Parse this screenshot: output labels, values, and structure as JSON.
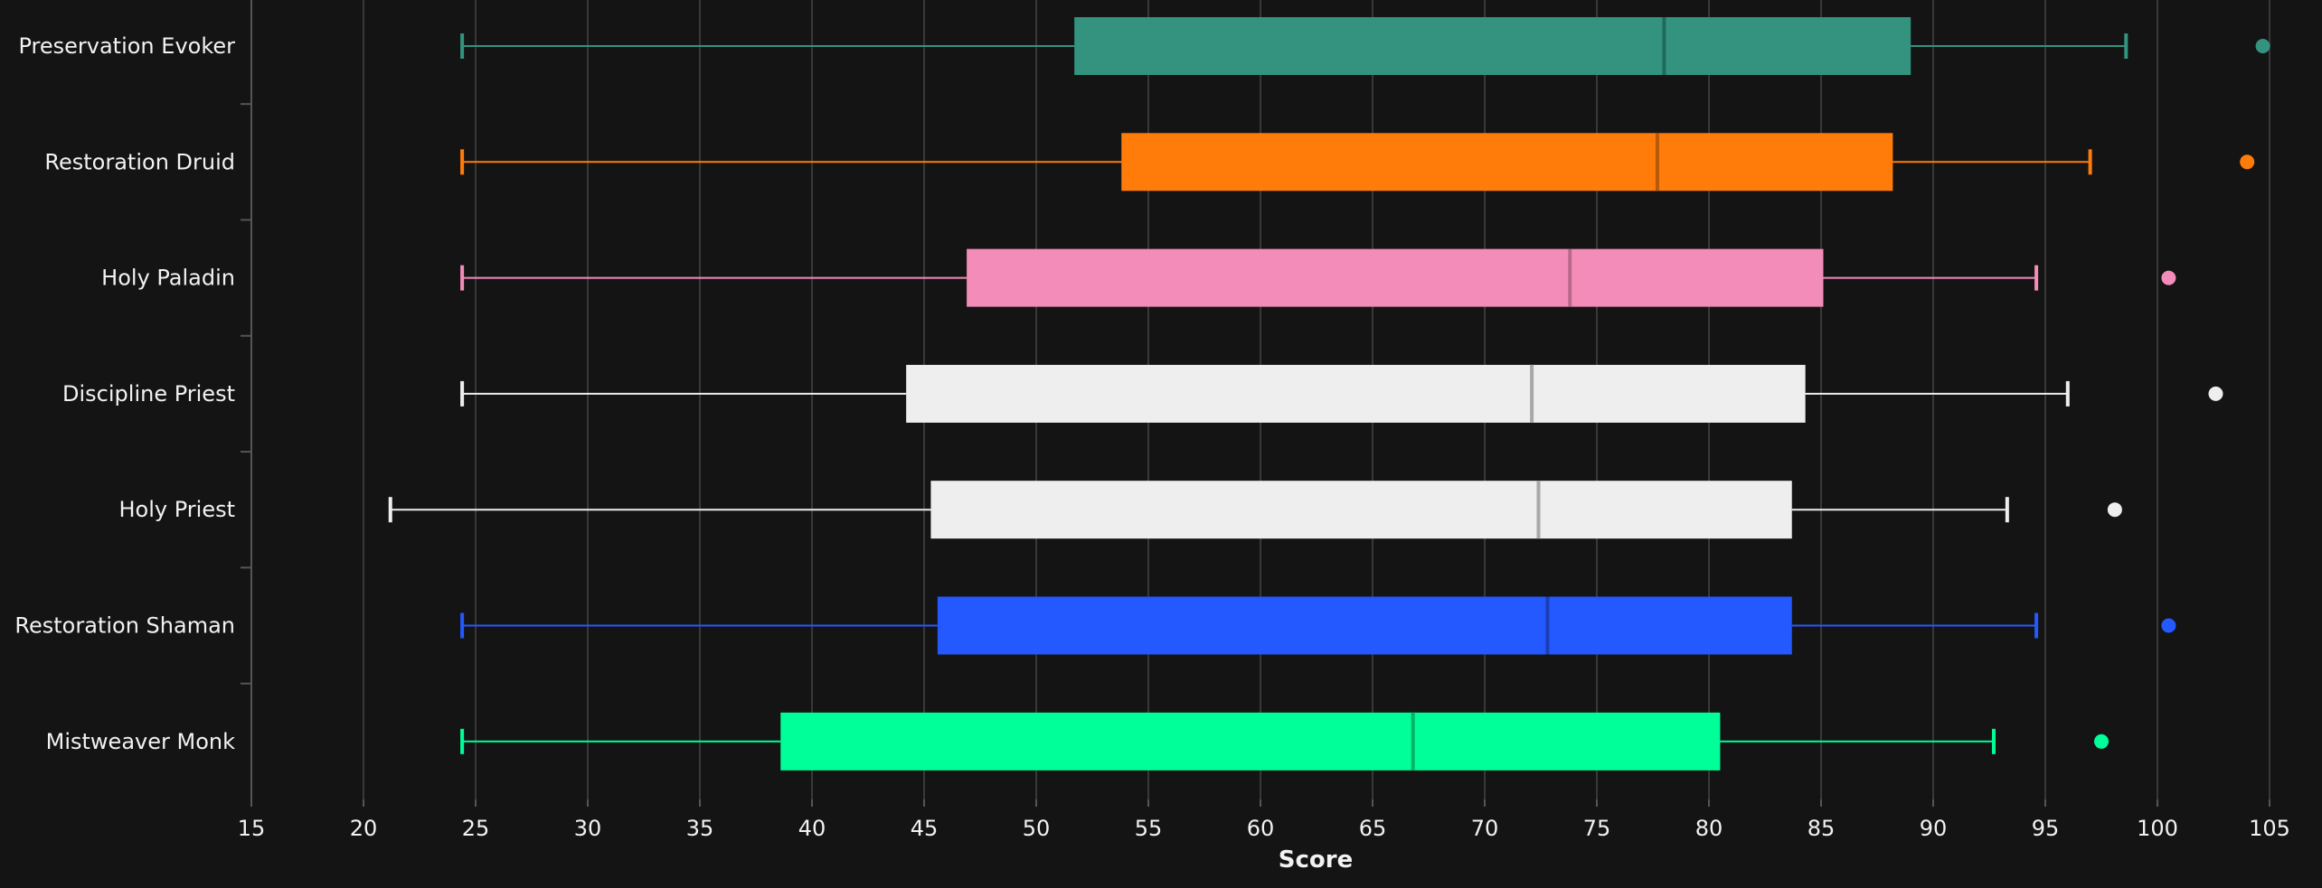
{
  "chart_data": {
    "type": "boxplot",
    "orientation": "horizontal",
    "xlabel": "Score",
    "xlim": [
      15,
      105
    ],
    "xticks": [
      15,
      20,
      25,
      30,
      35,
      40,
      45,
      50,
      55,
      60,
      65,
      70,
      75,
      80,
      85,
      90,
      95,
      100,
      105
    ],
    "grid": true,
    "series": [
      {
        "name": "Preservation Evoker",
        "color": "#33937F",
        "median_color": "#1f6b5b",
        "min": 24.4,
        "q1": 51.7,
        "median": 78.0,
        "q3": 89.0,
        "max": 98.6,
        "outliers": [
          104.7
        ]
      },
      {
        "name": "Restoration Druid",
        "color": "#FF7C0A",
        "median_color": "#b85a08",
        "min": 24.4,
        "q1": 53.8,
        "median": 77.7,
        "q3": 88.2,
        "max": 97.0,
        "outliers": [
          104.0
        ]
      },
      {
        "name": "Holy Paladin",
        "color": "#F48CBA",
        "median_color": "#b86a8c",
        "min": 24.4,
        "q1": 46.9,
        "median": 73.8,
        "q3": 85.1,
        "max": 94.6,
        "outliers": [
          100.5
        ]
      },
      {
        "name": "Discipline Priest",
        "color": "#EEEEEE",
        "median_color": "#a8a8a8",
        "min": 24.4,
        "q1": 44.2,
        "median": 72.1,
        "q3": 84.3,
        "max": 96.0,
        "outliers": [
          102.6
        ]
      },
      {
        "name": "Holy Priest",
        "color": "#EEEEEE",
        "median_color": "#a8a8a8",
        "min": 21.2,
        "q1": 45.3,
        "median": 72.4,
        "q3": 83.7,
        "max": 93.3,
        "outliers": [
          98.1
        ]
      },
      {
        "name": "Restoration Shaman",
        "color": "#2459FF",
        "median_color": "#1a3fb5",
        "min": 24.4,
        "q1": 45.6,
        "median": 72.8,
        "q3": 83.7,
        "max": 94.6,
        "outliers": [
          100.5
        ]
      },
      {
        "name": "Mistweaver Monk",
        "color": "#00FF98",
        "median_color": "#00b36b",
        "min": 24.4,
        "q1": 38.6,
        "median": 66.8,
        "q3": 80.5,
        "max": 92.7,
        "outliers": [
          97.5
        ]
      }
    ]
  }
}
